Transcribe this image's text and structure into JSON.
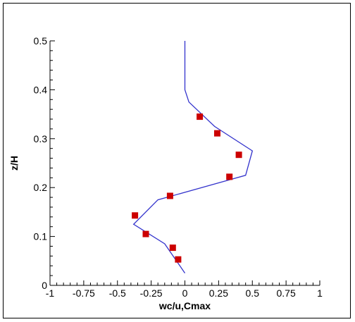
{
  "chart_data": {
    "type": "line",
    "title": "",
    "xlabel": "wc/u,Cmax",
    "ylabel": "z/H",
    "xlim": [
      -1,
      1
    ],
    "ylim": [
      0,
      0.5
    ],
    "x_ticks": [
      -1,
      -0.75,
      -0.5,
      -0.25,
      0,
      0.25,
      0.5,
      0.75,
      1
    ],
    "y_ticks": [
      0,
      0.1,
      0.2,
      0.3,
      0.4,
      0.5
    ],
    "x_tick_labels": [
      "-1",
      "-0.75",
      "-0.5",
      "-0.25",
      "0",
      "0.25",
      "0.5",
      "0.75",
      "1"
    ],
    "y_tick_labels": [
      "0",
      "0.1",
      "0.2",
      "0.3",
      "0.4",
      "0.5"
    ],
    "grid": false,
    "series": [
      {
        "type": "line",
        "color": "#3333cc",
        "points": [
          [
            0.0,
            0.025
          ],
          [
            -0.15,
            0.085
          ],
          [
            -0.38,
            0.125
          ],
          [
            -0.2,
            0.175
          ],
          [
            0.45,
            0.225
          ],
          [
            0.5,
            0.275
          ],
          [
            0.22,
            0.325
          ],
          [
            0.03,
            0.375
          ],
          [
            0.0,
            0.4
          ],
          [
            0.0,
            0.5
          ]
        ]
      },
      {
        "type": "scatter",
        "color": "#cc0000",
        "marker": "square",
        "points": [
          [
            -0.05,
            0.053
          ],
          [
            -0.09,
            0.077
          ],
          [
            -0.29,
            0.105
          ],
          [
            -0.37,
            0.143
          ],
          [
            -0.11,
            0.183
          ],
          [
            0.33,
            0.222
          ],
          [
            0.4,
            0.267
          ],
          [
            0.24,
            0.311
          ],
          [
            0.11,
            0.345
          ]
        ]
      }
    ]
  }
}
